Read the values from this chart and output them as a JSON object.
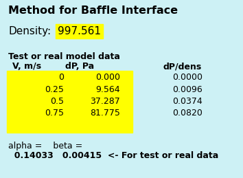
{
  "title": "Method for Baffle Interface",
  "bg_color": "#cdf1f5",
  "density_label": "Density:",
  "density_value": "997.561",
  "density_box_color": "#ffff00",
  "table_header_label": "Test or real model data",
  "col_headers": [
    "V, m/s",
    "dP, Pa",
    "dP/dens"
  ],
  "table_data": [
    [
      "0",
      "0.000",
      "0.0000"
    ],
    [
      "0.25",
      "9.564",
      "0.0096"
    ],
    [
      "0.5",
      "37.287",
      "0.0374"
    ],
    [
      "0.75",
      "81.775",
      "0.0820"
    ]
  ],
  "table_bg_color": "#ffff00",
  "alpha_label": "alpha =",
  "beta_label": "beta =",
  "alpha_value": "0.14033",
  "beta_value": "0.00415",
  "footer_note": "<- For test or real data",
  "font_color": "#000000",
  "title_fontsize": 11.5,
  "density_fontsize": 11,
  "body_fontsize": 9,
  "header_fontsize": 9
}
